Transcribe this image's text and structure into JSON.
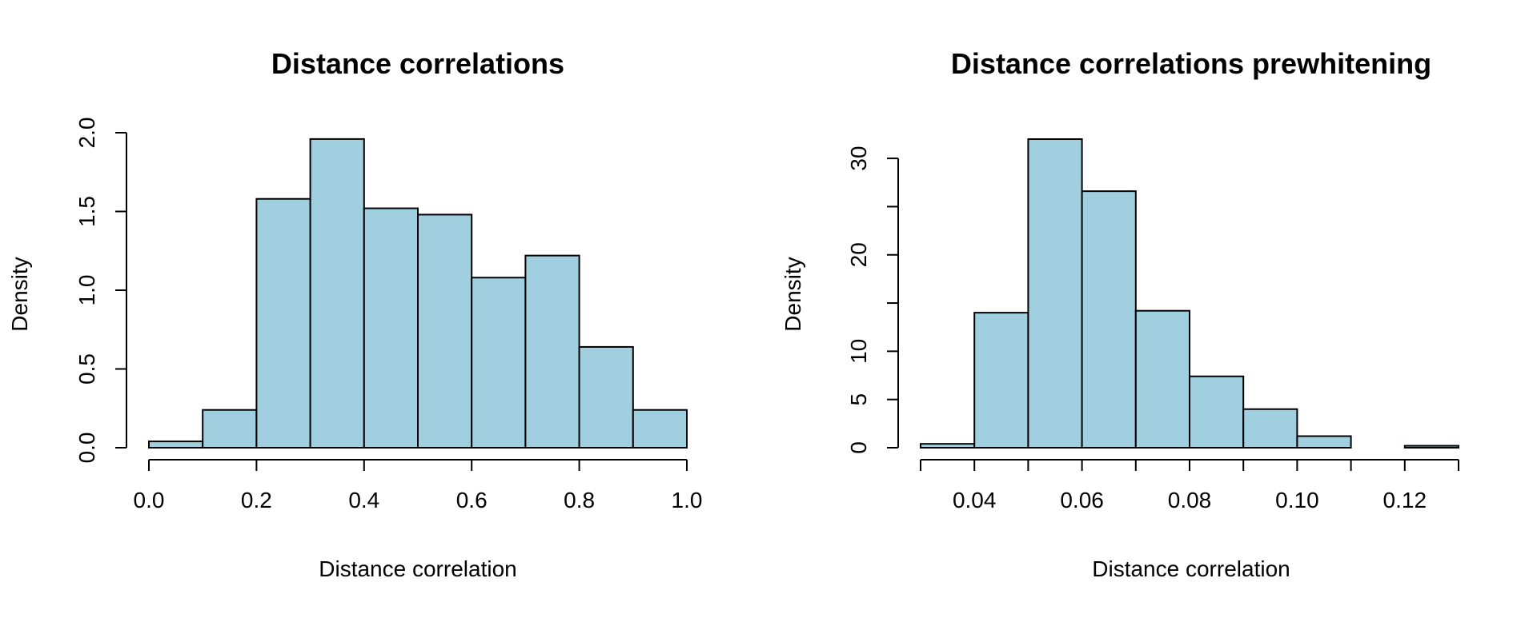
{
  "colors": {
    "bar_fill": "#A0CFE0",
    "bar_stroke": "#000000",
    "background": "#FFFFFF"
  },
  "chart_data": [
    {
      "type": "bar",
      "subtype": "histogram",
      "title": "Distance correlations",
      "xlabel": "Distance correlation",
      "ylabel": "Density",
      "bin_edges": [
        0.0,
        0.1,
        0.2,
        0.3,
        0.4,
        0.5,
        0.6,
        0.7,
        0.8,
        0.9,
        1.0
      ],
      "values": [
        0.04,
        0.24,
        1.58,
        1.96,
        1.52,
        1.48,
        1.08,
        1.22,
        0.64,
        0.24
      ],
      "xlim": [
        0.0,
        1.0
      ],
      "ylim": [
        0.0,
        2.0
      ],
      "xticks": [
        0.0,
        0.2,
        0.4,
        0.6,
        0.8,
        1.0
      ],
      "xtick_labels": [
        "0.0",
        "0.2",
        "0.4",
        "0.6",
        "0.8",
        "1.0"
      ],
      "yticks": [
        0.0,
        0.5,
        1.0,
        1.5,
        2.0
      ],
      "ytick_labels": [
        "0.0",
        "0.5",
        "1.0",
        "1.5",
        "2.0"
      ],
      "grid": false
    },
    {
      "type": "bar",
      "subtype": "histogram",
      "title": "Distance correlations prewhitening",
      "xlabel": "Distance correlation",
      "ylabel": "Density",
      "bin_edges": [
        0.03,
        0.04,
        0.05,
        0.06,
        0.07,
        0.08,
        0.09,
        0.1,
        0.11,
        0.12,
        0.13
      ],
      "values": [
        0.4,
        14.0,
        32.0,
        26.6,
        14.2,
        7.4,
        4.0,
        1.2,
        0.0,
        0.2
      ],
      "xlim": [
        0.03,
        0.13
      ],
      "ylim": [
        0,
        32
      ],
      "xticks": [
        0.04,
        0.06,
        0.08,
        0.1,
        0.12
      ],
      "xtick_labels": [
        "0.04",
        "0.06",
        "0.08",
        "0.10",
        "0.12"
      ],
      "minor_xticks": [
        0.03,
        0.05,
        0.07,
        0.09,
        0.11,
        0.13
      ],
      "yticks": [
        0,
        5,
        10,
        15,
        20,
        25,
        30
      ],
      "ytick_labels": [
        "0",
        "5",
        "10",
        "",
        "20",
        "",
        "30"
      ],
      "grid": false
    }
  ]
}
